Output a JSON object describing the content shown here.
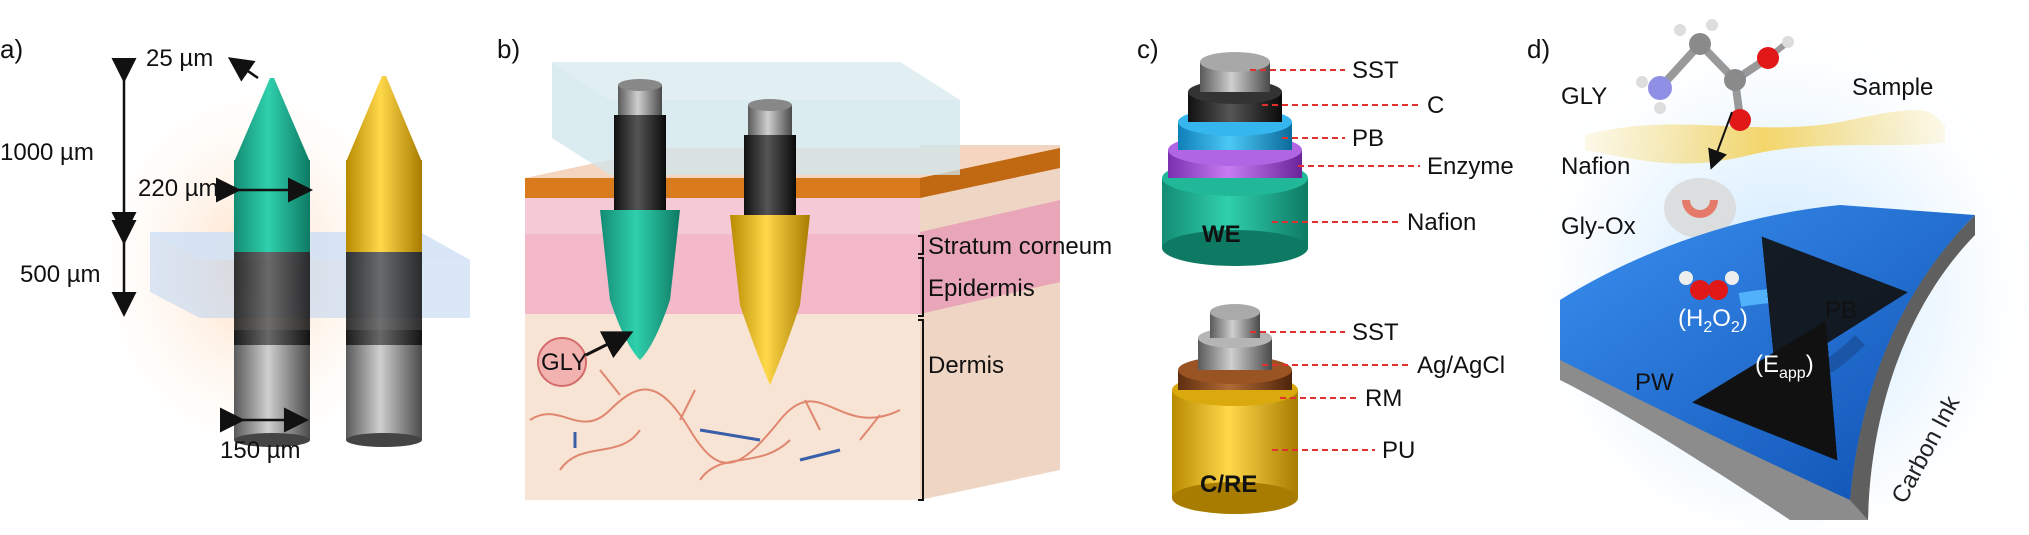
{
  "panel_a": {
    "label": "a)",
    "dim_tip": "25 µm",
    "dim_length": "1000 µm",
    "dim_width": "220 µm",
    "dim_base": "500 µm",
    "dim_wire": "150 µm"
  },
  "panel_b": {
    "label": "b)",
    "analyte": "GLY",
    "layer_1": "Stratum corneum",
    "layer_2": "Epidermis",
    "layer_3": "Dermis"
  },
  "panel_c": {
    "label": "c)",
    "we": {
      "tag": "WE",
      "layers": [
        "SST",
        "C",
        "PB",
        "Enzyme",
        "Nafion"
      ]
    },
    "cre": {
      "tag": "C/RE",
      "layers": [
        "SST",
        "Ag/AgCl",
        "RM",
        "PU"
      ]
    }
  },
  "panel_d": {
    "label": "d)",
    "gly": "GLY",
    "sample": "Sample",
    "nafion": "Nafion",
    "gly_ox": "Gly-Ox",
    "h2o2": "(H",
    "h2o2_sub1": "2",
    "h2o2_mid": "O",
    "h2o2_sub2": "2",
    "h2o2_end": ")",
    "pb": "PB",
    "pw": "PW",
    "eapp": "(E",
    "eapp_sub": "app",
    "eapp_end": ")",
    "carbon": "Carbon Ink"
  },
  "colors": {
    "we_green": "#1fae93",
    "gold": "#e6b80e",
    "stratum": "#d97a1c",
    "epidermis": "#f2b8c6",
    "dermis": "#f7e3d4",
    "enzyme": "#a24fd8",
    "pb_blue": "#20a8e6",
    "rm_brown": "#8b4a1e",
    "sensor_blue": "#1f6fd6"
  }
}
